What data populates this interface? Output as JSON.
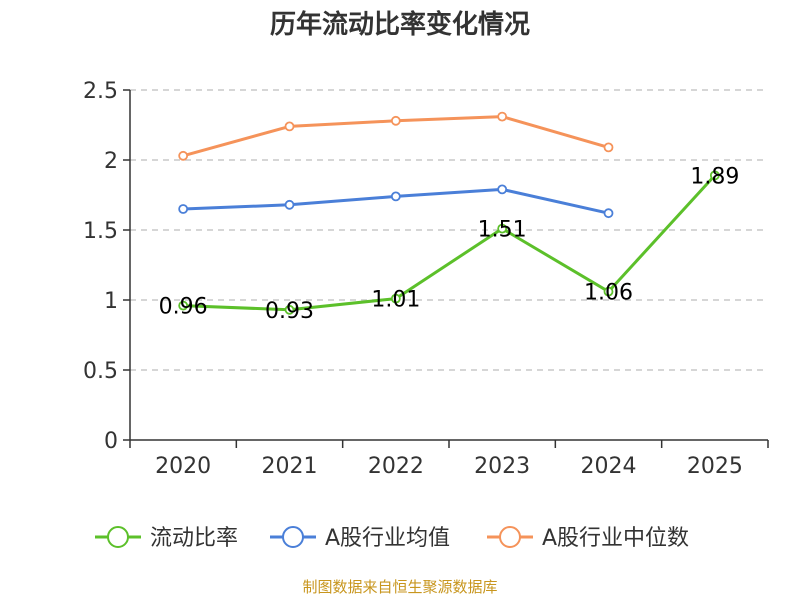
{
  "chart_data": {
    "type": "line",
    "title": "历年流动比率变化情况",
    "categories": [
      "2020",
      "2021",
      "2022",
      "2023",
      "2024",
      "2025"
    ],
    "ylim": [
      0,
      2.5
    ],
    "yticks": [
      "0",
      "0.5",
      "1",
      "1.5",
      "2",
      "2.5"
    ],
    "series": [
      {
        "name": "流动比率",
        "color": "#5cc02a",
        "values": [
          0.96,
          0.93,
          1.01,
          1.51,
          1.06,
          1.89
        ],
        "labels": [
          "0.96",
          "0.93",
          "1.01",
          "1.51",
          "1.06",
          "1.89"
        ]
      },
      {
        "name": "A股行业均值",
        "color": "#4a7fd8",
        "values": [
          1.65,
          1.68,
          1.74,
          1.79,
          1.62,
          null
        ]
      },
      {
        "name": "A股行业中位数",
        "color": "#f5935a",
        "values": [
          2.03,
          2.24,
          2.28,
          2.31,
          2.09,
          null
        ]
      }
    ],
    "grid": true,
    "legend": "bottom",
    "source": "制图数据来自恒生聚源数据库"
  }
}
